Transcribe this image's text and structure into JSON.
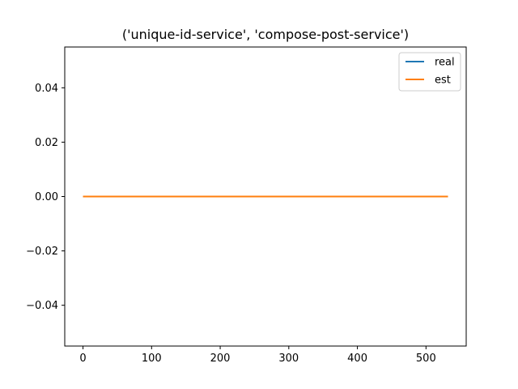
{
  "chart_data": {
    "type": "line",
    "title": "('unique-id-service', 'compose-post-service')",
    "xlabel": "",
    "ylabel": "",
    "xlim": [
      -26.6,
      558.6
    ],
    "ylim": [
      -0.055,
      0.055
    ],
    "x_ticks": [
      0,
      100,
      200,
      300,
      400,
      500
    ],
    "y_ticks": [
      -0.04,
      -0.02,
      0.0,
      0.02,
      0.04
    ],
    "x_tick_labels": [
      "0",
      "100",
      "200",
      "300",
      "400",
      "500"
    ],
    "y_tick_labels": [
      "−0.04",
      "−0.02",
      "0.00",
      "0.02",
      "0.04"
    ],
    "grid": false,
    "legend_position": "top-right",
    "series": [
      {
        "name": "real",
        "color": "#1f77b4",
        "x": [
          0,
          532
        ],
        "y": [
          0,
          0
        ]
      },
      {
        "name": "est",
        "color": "#ff7f0e",
        "x": [
          0,
          532
        ],
        "y": [
          0,
          0
        ]
      }
    ]
  }
}
